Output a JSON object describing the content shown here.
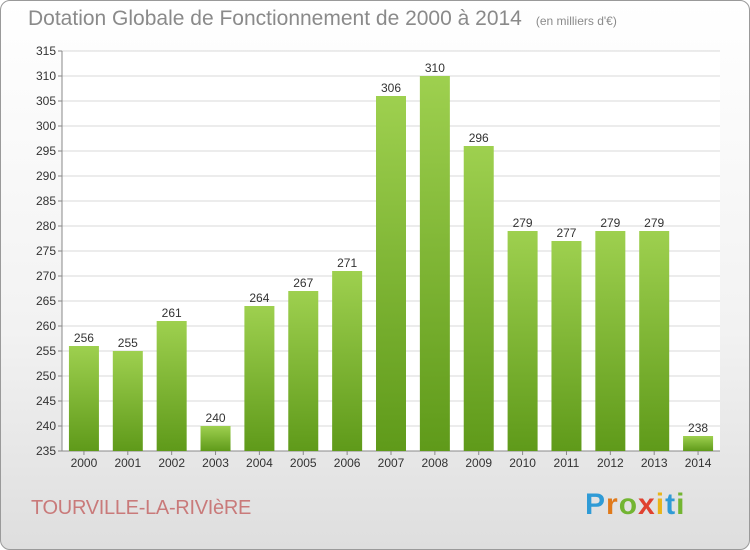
{
  "chart_data": {
    "type": "bar",
    "title": "Dotation Globale de Fonctionnement de 2000 à 2014",
    "subtitle": "(en milliers d'€)",
    "categories": [
      "2000",
      "2001",
      "2002",
      "2003",
      "2004",
      "2005",
      "2006",
      "2007",
      "2008",
      "2009",
      "2010",
      "2011",
      "2012",
      "2013",
      "2014"
    ],
    "values": [
      256,
      255,
      261,
      240,
      264,
      267,
      271,
      306,
      310,
      296,
      279,
      277,
      279,
      279,
      238
    ],
    "ylim": [
      235,
      315
    ],
    "yticks": [
      235,
      240,
      245,
      250,
      255,
      260,
      265,
      270,
      275,
      280,
      285,
      290,
      295,
      300,
      305,
      310,
      315
    ],
    "xlabel": "",
    "ylabel": "",
    "grid": "horizontal",
    "bar_color_top": "#9ed04f",
    "bar_color_bottom": "#5f9a1a"
  },
  "footer": {
    "commune": "TOURVILLE-LA-RIVIèRE",
    "logo_text": [
      "P",
      "r",
      "o",
      "x",
      "i",
      "t",
      "i"
    ]
  }
}
